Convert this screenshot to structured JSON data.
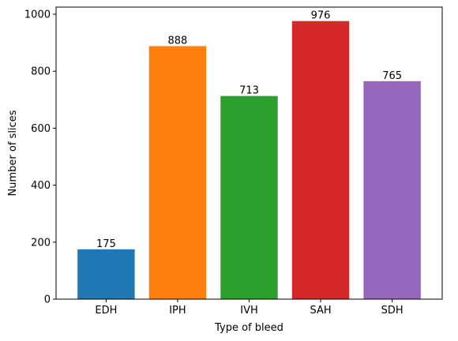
{
  "chart_data": {
    "type": "bar",
    "title": "",
    "xlabel": "Type of bleed",
    "ylabel": "Number of slices",
    "categories": [
      "EDH",
      "IPH",
      "IVH",
      "SAH",
      "SDH"
    ],
    "values": [
      175,
      888,
      713,
      976,
      765
    ],
    "data_labels": [
      "175",
      "888",
      "713",
      "976",
      "765"
    ],
    "colors": [
      "#1f77b4",
      "#ff7f0e",
      "#2ca02c",
      "#d62728",
      "#9467bd"
    ],
    "ylim": [
      0,
      1025
    ],
    "yticks": [
      0,
      200,
      400,
      600,
      800,
      1000
    ],
    "ytick_labels": [
      "0",
      "200",
      "400",
      "600",
      "800",
      "1000"
    ],
    "grid": false,
    "legend": "none"
  }
}
